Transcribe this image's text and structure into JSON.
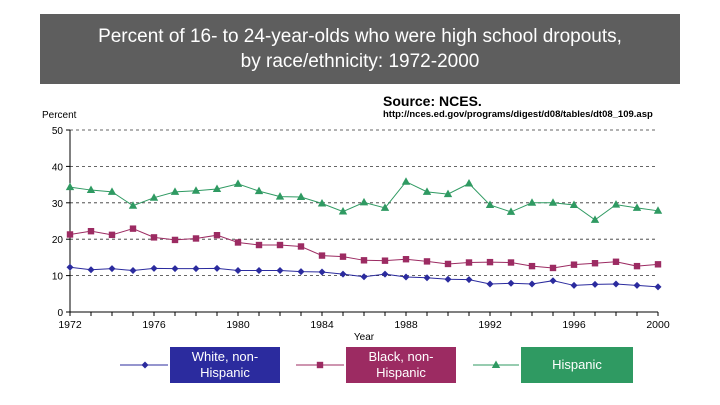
{
  "title": {
    "line1": "Percent of 16- to 24-year-olds who were high school dropouts,",
    "line2": "by race/ethnicity: 1972-2000"
  },
  "source": {
    "label": "Source: NCES.",
    "url": "http://nces.ed.gov/programs/digest/d08/tables/dt08_109.asp"
  },
  "colors": {
    "title_bg": "#5e5e5e",
    "white": "#2b2b9e",
    "black": "#9c2b62",
    "hispanic": "#2f9a62"
  },
  "chart_data": {
    "type": "line",
    "xlabel": "Year",
    "ylabel": "Percent",
    "xlim": [
      1972,
      2000
    ],
    "ylim": [
      0,
      50
    ],
    "x_ticks": [
      "1972",
      "1976",
      "1980",
      "1984",
      "1988",
      "1992",
      "1996",
      "2000"
    ],
    "y_ticks": [
      "0",
      "10",
      "20",
      "30",
      "40",
      "50"
    ],
    "grid": "horizontal dashed",
    "legend_placement": "bottom",
    "x": [
      1972,
      1973,
      1974,
      1975,
      1976,
      1977,
      1978,
      1979,
      1980,
      1981,
      1982,
      1983,
      1984,
      1985,
      1986,
      1987,
      1988,
      1989,
      1990,
      1991,
      1992,
      1993,
      1994,
      1995,
      1996,
      1997,
      1998,
      1999,
      2000
    ],
    "series": [
      {
        "name": "White, non-Hispanic",
        "marker": "diamond",
        "values": [
          12.3,
          11.6,
          11.9,
          11.4,
          12.0,
          11.9,
          11.9,
          12.0,
          11.4,
          11.4,
          11.4,
          11.1,
          11.0,
          10.4,
          9.7,
          10.4,
          9.6,
          9.4,
          9.0,
          8.9,
          7.7,
          7.9,
          7.7,
          8.6,
          7.3,
          7.6,
          7.7,
          7.3,
          6.9
        ]
      },
      {
        "name": "Black, non-Hispanic",
        "marker": "square",
        "values": [
          21.3,
          22.2,
          21.2,
          22.9,
          20.5,
          19.8,
          20.2,
          21.1,
          19.1,
          18.4,
          18.4,
          18.0,
          15.5,
          15.2,
          14.2,
          14.1,
          14.5,
          13.9,
          13.2,
          13.6,
          13.7,
          13.6,
          12.6,
          12.1,
          13.0,
          13.4,
          13.8,
          12.6,
          13.1
        ]
      },
      {
        "name": "Hispanic",
        "marker": "triangle",
        "values": [
          34.3,
          33.5,
          33.0,
          29.2,
          31.4,
          33.0,
          33.3,
          33.8,
          35.2,
          33.2,
          31.7,
          31.6,
          29.8,
          27.6,
          30.1,
          28.6,
          35.8,
          33.0,
          32.4,
          35.3,
          29.4,
          27.5,
          30.0,
          30.0,
          29.4,
          25.3,
          29.5,
          28.6,
          27.8
        ]
      }
    ]
  }
}
